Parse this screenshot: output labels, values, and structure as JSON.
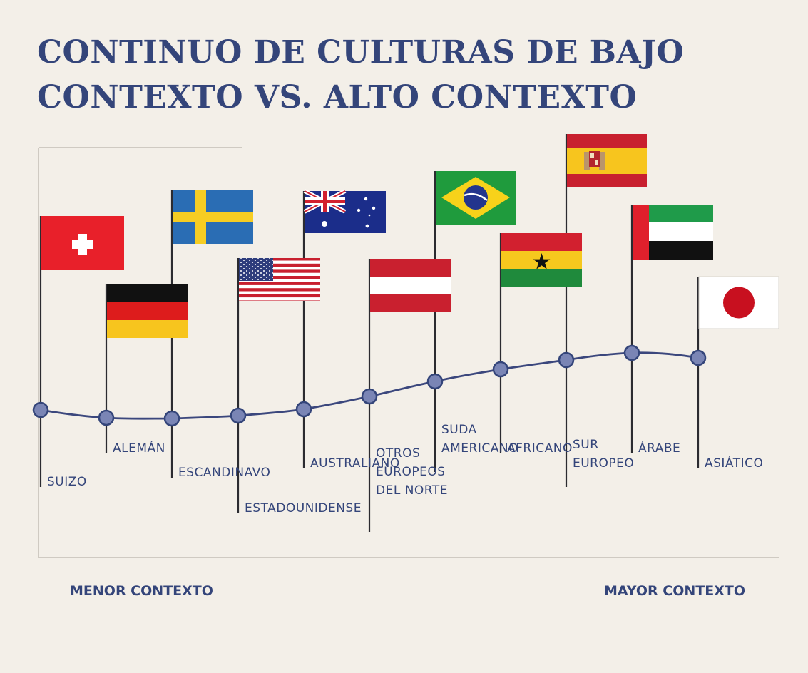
{
  "title": {
    "line1": "CONTINUO DE CULTURAS DE BAJO",
    "line2": "CONTEXTO VS. ALTO CONTEXTO"
  },
  "axis": {
    "left_label": "MENOR CONTEXTO",
    "right_label": "MAYOR CONTEXTO"
  },
  "colors": {
    "navy": "#34457a",
    "background": "#f3efe8",
    "marker_fill": "#7a85b5"
  },
  "cultures": [
    {
      "label": [
        "SUIZO"
      ],
      "flag": "switzerland-flag"
    },
    {
      "label": [
        "ALEMÁN"
      ],
      "flag": "germany-flag"
    },
    {
      "label": [
        "ESCANDINAVO"
      ],
      "flag": "sweden-flag"
    },
    {
      "label": [
        "ESTADOUNIDENSE"
      ],
      "flag": "usa-flag"
    },
    {
      "label": [
        "AUSTRALIANO"
      ],
      "flag": "australia-flag"
    },
    {
      "label": [
        "OTROS",
        "EUROPEOS",
        "DEL NORTE"
      ],
      "flag": "austria-flag"
    },
    {
      "label": [
        "SUDA",
        "AMERICANO"
      ],
      "flag": "brazil-flag"
    },
    {
      "label": [
        "AFRICANO"
      ],
      "flag": "ghana-flag"
    },
    {
      "label": [
        "SUR",
        "EUROPEO"
      ],
      "flag": "spain-flag"
    },
    {
      "label": [
        "ÁRABE"
      ],
      "flag": "uae-flag"
    },
    {
      "label": [
        "ASIÁTICO"
      ],
      "flag": "japan-flag"
    }
  ]
}
